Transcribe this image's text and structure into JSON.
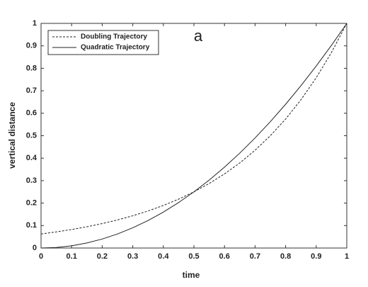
{
  "chart_data": {
    "type": "line",
    "annotation": "a",
    "xlabel": "time",
    "ylabel": "vertical distance",
    "x": [
      0,
      0.05,
      0.1,
      0.15,
      0.2,
      0.25,
      0.3,
      0.35,
      0.4,
      0.45,
      0.5,
      0.55,
      0.6,
      0.65,
      0.7,
      0.75,
      0.8,
      0.85,
      0.9,
      0.95,
      1
    ],
    "series": [
      {
        "name": "Doubling Trajectory",
        "color": "#222222",
        "style": "dashed",
        "values": [
          0.0625,
          0.0718,
          0.0825,
          0.0947,
          0.1088,
          0.125,
          0.1436,
          0.1649,
          0.1895,
          0.2176,
          0.25,
          0.2872,
          0.3299,
          0.3789,
          0.4353,
          0.5,
          0.5743,
          0.6598,
          0.7579,
          0.8706,
          1
        ]
      },
      {
        "name": "Quadratic Trajectory",
        "color": "#222222",
        "style": "solid",
        "values": [
          0,
          0.0025,
          0.01,
          0.0225,
          0.04,
          0.0625,
          0.09,
          0.1225,
          0.16,
          0.2025,
          0.25,
          0.3025,
          0.36,
          0.4225,
          0.49,
          0.5625,
          0.64,
          0.7225,
          0.81,
          0.9025,
          1
        ]
      }
    ],
    "xlim": [
      0,
      1
    ],
    "xticks": [
      0,
      0.1,
      0.2,
      0.3,
      0.4,
      0.5,
      0.6,
      0.7,
      0.8,
      0.9,
      1
    ],
    "ylim": [
      0,
      1
    ],
    "yticks": [
      0,
      0.1,
      0.2,
      0.3,
      0.4,
      0.5,
      0.6,
      0.7,
      0.8,
      0.9,
      1
    ],
    "grid": false,
    "legend": "upper left"
  }
}
